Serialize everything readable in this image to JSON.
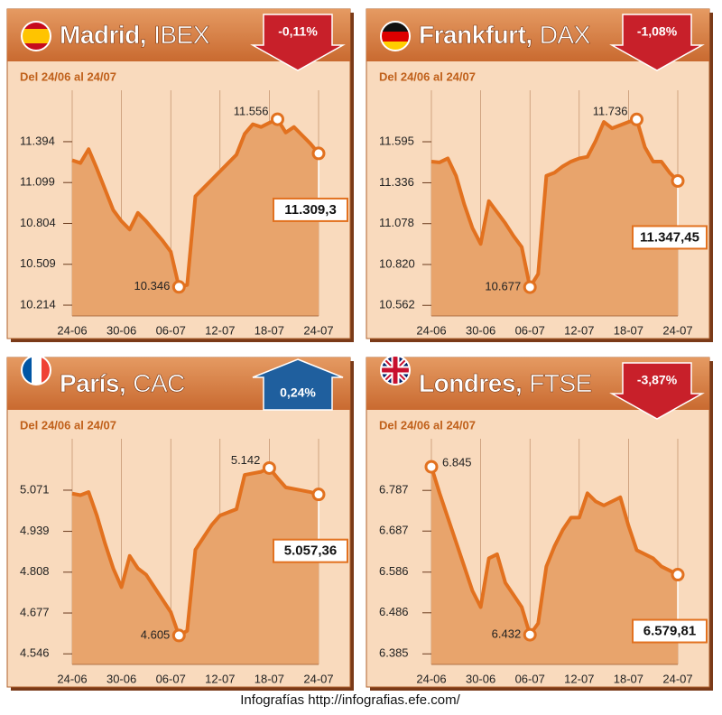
{
  "chart_data": [
    {
      "type": "line",
      "title": "Madrid,",
      "index": "IBEX",
      "change": "-0,11%",
      "change_direction": "down",
      "subtitle": "Del 24/06 al 24/07",
      "categories": [
        "24-06",
        null,
        null,
        null,
        null,
        null,
        "30-06",
        null,
        null,
        null,
        null,
        null,
        "06-07",
        null,
        null,
        null,
        null,
        null,
        "12-07",
        null,
        null,
        null,
        null,
        null,
        "18-07",
        null,
        null,
        null,
        null,
        null,
        "24-07"
      ],
      "values": [
        11260,
        11240,
        11340,
        11200,
        11050,
        10900,
        10820,
        10760,
        10880,
        10820,
        10750,
        10680,
        10600,
        10346,
        10360,
        11000,
        11060,
        11120,
        11180,
        11240,
        11300,
        11450,
        11520,
        11500,
        11530,
        11556,
        11460,
        11500,
        11440,
        11380,
        11309.3
      ],
      "value_labels": [
        null,
        null,
        null,
        null,
        null,
        null,
        null,
        null,
        null,
        null,
        null,
        null,
        null,
        "10.346",
        null,
        null,
        null,
        null,
        null,
        null,
        null,
        null,
        null,
        null,
        null,
        "11.556",
        null,
        null,
        null,
        null,
        "11.309,3"
      ],
      "color": "#e2711f",
      "ylim": [
        10136,
        11765
      ],
      "yticks": [
        {
          "value": 10214,
          "label": "10.214"
        },
        {
          "value": 10509,
          "label": "10.509"
        },
        {
          "value": 10804,
          "label": "10.804"
        },
        {
          "value": 11099,
          "label": "11.099"
        },
        {
          "value": 11394,
          "label": "11.394"
        }
      ],
      "grid": "x"
    },
    {
      "type": "line",
      "title": "Frankfurt,",
      "index": "DAX",
      "change": "-1,08%",
      "change_direction": "down",
      "subtitle": "Del 24/06 al 24/07",
      "categories": [
        "24-06",
        null,
        null,
        null,
        null,
        null,
        "30-06",
        null,
        null,
        null,
        null,
        null,
        "06-07",
        null,
        null,
        null,
        null,
        null,
        "12-07",
        null,
        null,
        null,
        null,
        null,
        "18-07",
        null,
        null,
        null,
        null,
        null,
        "24-07"
      ],
      "values": [
        11470,
        11465,
        11490,
        11380,
        11200,
        11050,
        10950,
        11220,
        11150,
        11080,
        11000,
        10930,
        10677,
        10760,
        11380,
        11400,
        11440,
        11470,
        11490,
        11500,
        11600,
        11720,
        11680,
        11700,
        11720,
        11736,
        11560,
        11470,
        11470,
        11400,
        11347.45
      ],
      "value_labels": [
        null,
        null,
        null,
        null,
        null,
        null,
        null,
        null,
        null,
        null,
        null,
        null,
        "10.677",
        null,
        null,
        null,
        null,
        null,
        null,
        null,
        null,
        null,
        null,
        null,
        null,
        "11.736",
        null,
        null,
        null,
        null,
        "11.347,45"
      ],
      "color": "#e2711f",
      "ylim": [
        10495,
        11920
      ],
      "yticks": [
        {
          "value": 10562,
          "label": "10.562"
        },
        {
          "value": 10820,
          "label": "10.820"
        },
        {
          "value": 11078,
          "label": "11.078"
        },
        {
          "value": 11336,
          "label": "11.336"
        },
        {
          "value": 11595,
          "label": "11.595"
        }
      ],
      "grid": "x"
    },
    {
      "type": "line",
      "title": "París,",
      "index": "CAC",
      "change": "0,24%",
      "change_direction": "up",
      "subtitle": "Del 24/06 al 24/07",
      "categories": [
        "24-06",
        null,
        null,
        null,
        null,
        null,
        "30-06",
        null,
        null,
        null,
        null,
        null,
        "06-07",
        null,
        null,
        null,
        null,
        null,
        "12-07",
        null,
        null,
        null,
        null,
        null,
        "18-07",
        null,
        null,
        null,
        null,
        null,
        "24-07"
      ],
      "values": [
        5060,
        5055,
        5065,
        4990,
        4900,
        4820,
        4760,
        4860,
        4820,
        4800,
        4760,
        4720,
        4680,
        4605,
        4620,
        4880,
        4920,
        4960,
        4990,
        5000,
        5010,
        5120,
        5125,
        5130,
        5142,
        5110,
        5080,
        5075,
        5070,
        5065,
        5057.36
      ],
      "value_labels": [
        null,
        null,
        null,
        null,
        null,
        null,
        null,
        null,
        null,
        null,
        null,
        null,
        null,
        "4.605",
        null,
        null,
        null,
        null,
        null,
        null,
        null,
        null,
        null,
        null,
        "5.142",
        null,
        null,
        null,
        null,
        null,
        "5.057,36"
      ],
      "color": "#e2711f",
      "ylim": [
        4512,
        5236
      ],
      "yticks": [
        {
          "value": 4546,
          "label": "4.546"
        },
        {
          "value": 4677,
          "label": "4.677"
        },
        {
          "value": 4808,
          "label": "4.808"
        },
        {
          "value": 4939,
          "label": "4.939"
        },
        {
          "value": 5071,
          "label": "5.071"
        }
      ],
      "grid": "x"
    },
    {
      "type": "line",
      "title": "Londres,",
      "index": "FTSE",
      "change": "-3,87%",
      "change_direction": "down",
      "subtitle": "Del 24/06 al 24/07",
      "categories": [
        "24-06",
        null,
        null,
        null,
        null,
        null,
        "30-06",
        null,
        null,
        null,
        null,
        null,
        "06-07",
        null,
        null,
        null,
        null,
        null,
        "12-07",
        null,
        null,
        null,
        null,
        null,
        "18-07",
        null,
        null,
        null,
        null,
        null,
        "24-07"
      ],
      "values": [
        6845,
        6780,
        6720,
        6660,
        6600,
        6540,
        6500,
        6620,
        6630,
        6560,
        6530,
        6500,
        6432,
        6460,
        6600,
        6650,
        6690,
        6720,
        6720,
        6780,
        6760,
        6750,
        6760,
        6770,
        6700,
        6640,
        6630,
        6620,
        6600,
        6590,
        6579.81
      ],
      "value_labels": [
        "6.845",
        null,
        null,
        null,
        null,
        null,
        null,
        null,
        null,
        null,
        null,
        null,
        "6.432",
        null,
        null,
        null,
        null,
        null,
        null,
        null,
        null,
        null,
        null,
        null,
        null,
        null,
        null,
        null,
        null,
        null,
        "6.579,81"
      ],
      "color": "#e2711f",
      "ylim": [
        6359,
        6914
      ],
      "yticks": [
        {
          "value": 6385,
          "label": "6.385"
        },
        {
          "value": 6486,
          "label": "6.486"
        },
        {
          "value": 6586,
          "label": "6.586"
        },
        {
          "value": 6687,
          "label": "6.687"
        },
        {
          "value": 6787,
          "label": "6.787"
        }
      ],
      "grid": "x"
    }
  ],
  "footer": "Infografías http://infografias.efe.com/"
}
